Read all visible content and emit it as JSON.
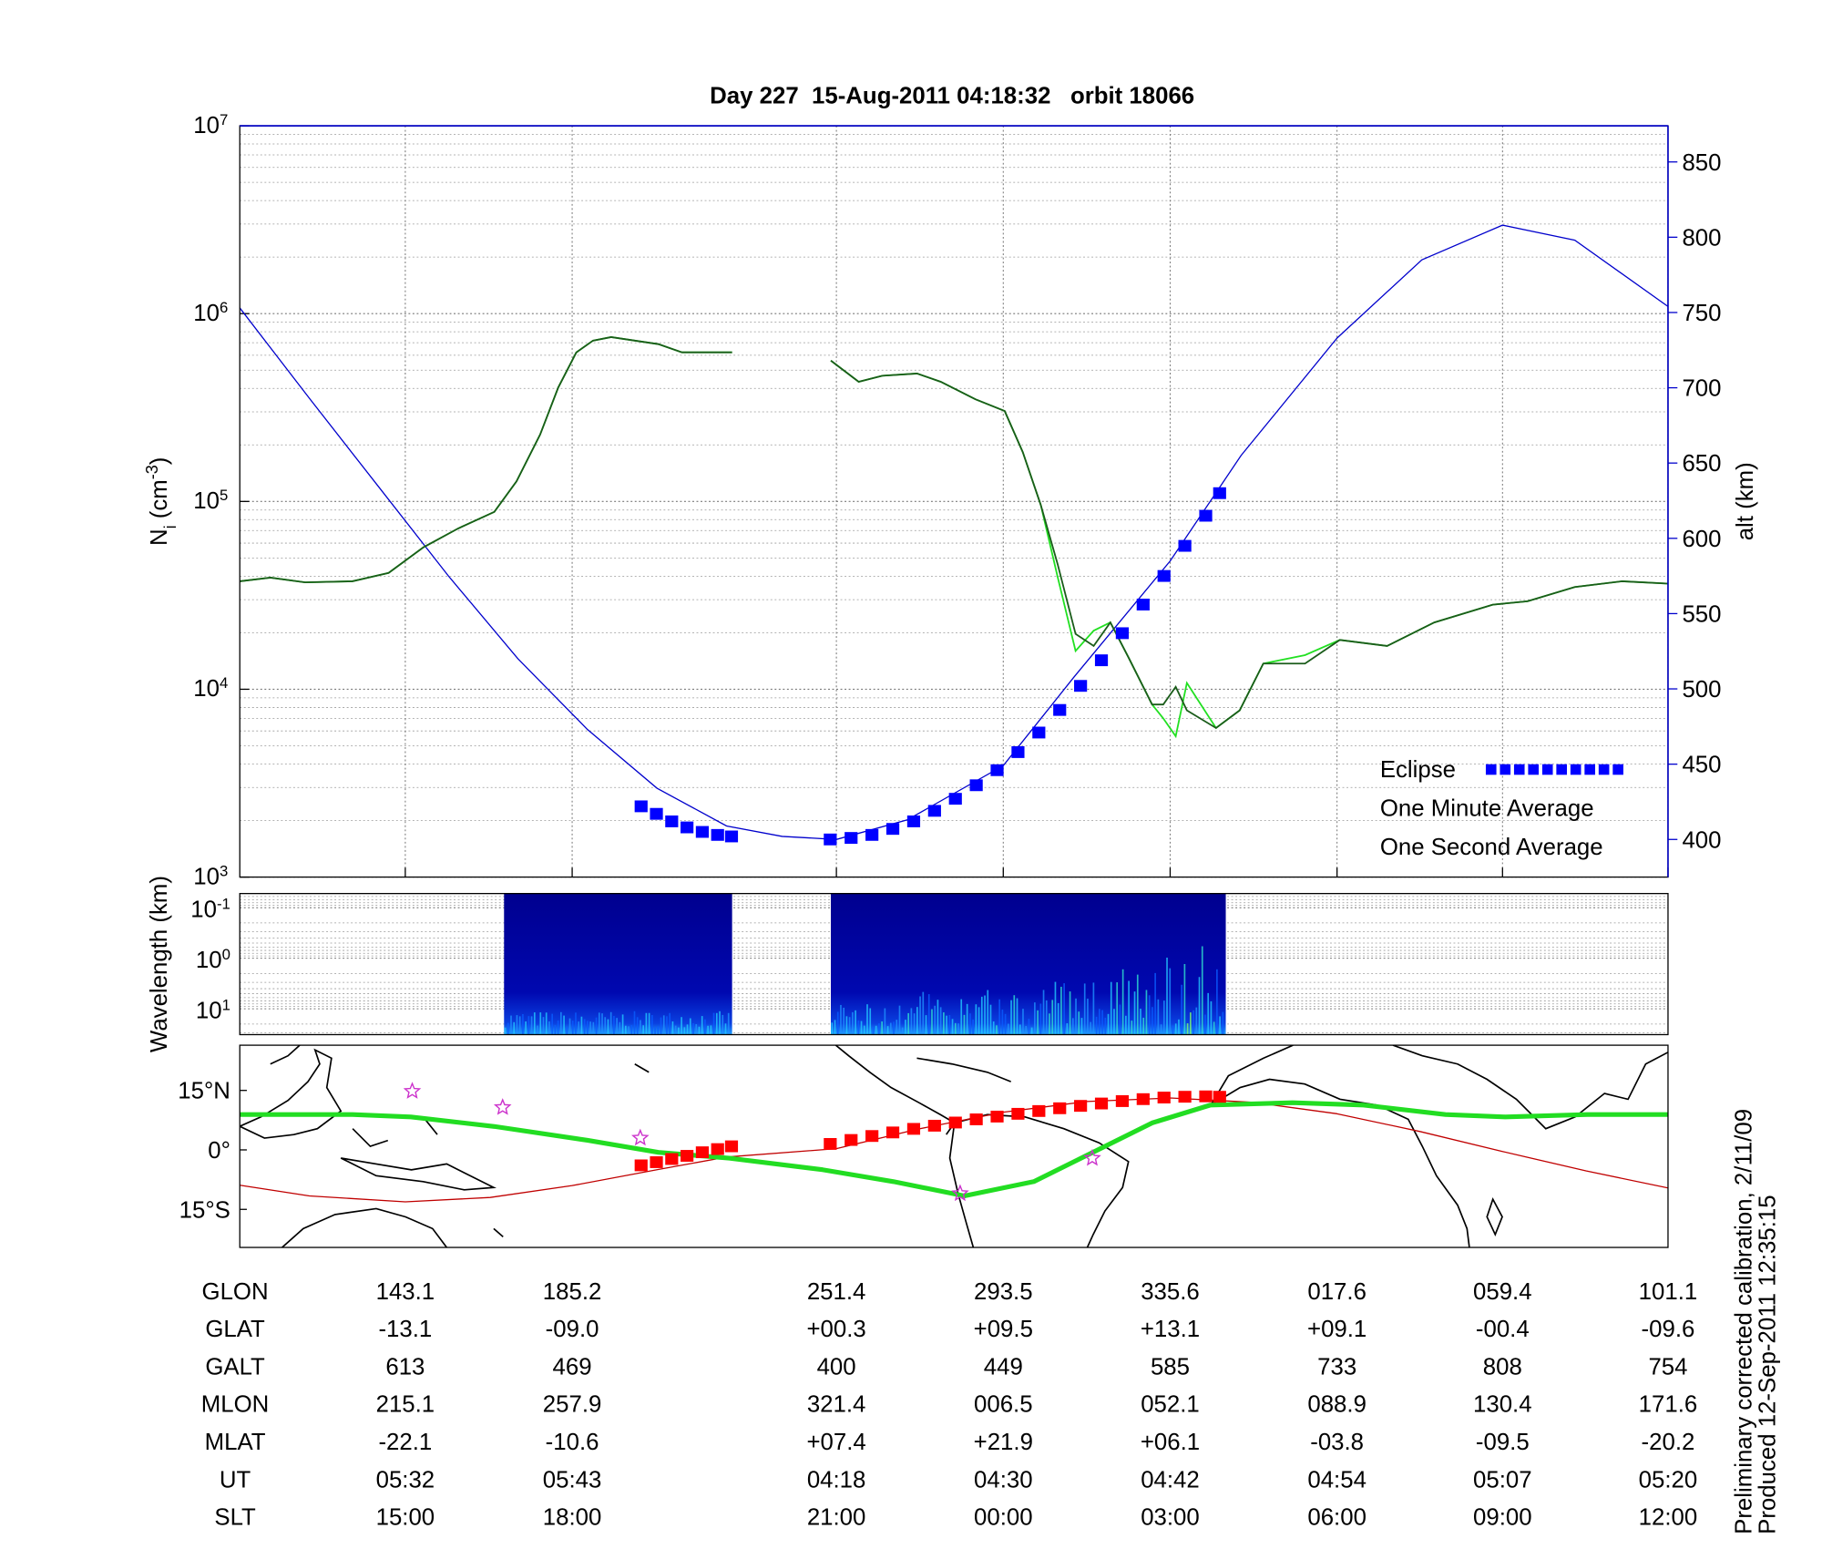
{
  "chart_data": [
    {
      "type": "line",
      "title": "Day 227  15-Aug-2011 04:18:32   orbit 18066",
      "ylabel": {
        "base": "N",
        "sub": "i",
        "unit": " (cm",
        "sup": "-3",
        "end": ")"
      },
      "y2label": "alt (km)",
      "log_y": true,
      "grid": true,
      "minor_grid": true,
      "legend": "lower right",
      "x": [
        0,
        2.2,
        4.7,
        8.1,
        10.7,
        13.2,
        15.7,
        18.3,
        19.9,
        21.6,
        22.9,
        24.2,
        25.4,
        26.7,
        28.4,
        30.1,
        31.8,
        33.5,
        35.4,
        39.0,
        42.5,
        44.5,
        46.2,
        48.7,
        50.4,
        52.9,
        55.0,
        56.3,
        57.6,
        58.8,
        60.1,
        61.4,
        62.6,
        63.9,
        65.6,
        66.4,
        67.3,
        68.1,
        70.2,
        71.9,
        73.6,
        76.6,
        79.1,
        82.5,
        85.9,
        90.1,
        92.6,
        96.0,
        99.4,
        102.7
      ],
      "xlim": [
        0,
        102.7
      ],
      "xticks": [
        11.9,
        23.9,
        42.9,
        54.9,
        66.9,
        78.9,
        90.8,
        102.7
      ],
      "ylim": [
        1000,
        10000000
      ],
      "yticks": [
        {
          "value": 1000,
          "label": "10",
          "sup": "3"
        },
        {
          "value": 10000,
          "label": "10",
          "sup": "4"
        },
        {
          "value": 100000,
          "label": "10",
          "sup": "5"
        },
        {
          "value": 1000000,
          "label": "10",
          "sup": "6"
        },
        {
          "value": 10000000,
          "label": "10",
          "sup": "7"
        }
      ],
      "y2lim": [
        375,
        874
      ],
      "y2ticks": [
        400,
        450,
        500,
        550,
        600,
        650,
        700,
        750,
        800,
        850
      ],
      "series": [
        {
          "name": "Eclipse",
          "color": "#0000ff",
          "axis": "y2",
          "marker": "square",
          "x": [
            28.9,
            30.0,
            31.1,
            32.2,
            33.3,
            34.4,
            35.4,
            42.5,
            44,
            45.5,
            47,
            48.5,
            50,
            51.5,
            53,
            54.5,
            56,
            57.5,
            59,
            60.5,
            62,
            63.5,
            65,
            66.5,
            68,
            69.5,
            70.5
          ],
          "values": [
            422,
            417,
            412,
            408,
            405,
            403,
            402,
            400,
            401,
            403,
            407,
            412,
            419,
            427,
            436,
            446,
            458,
            471,
            486,
            502,
            519,
            537,
            556,
            575,
            595,
            615,
            630
          ]
        },
        {
          "name": "One Minute Average",
          "color": "#1a5c1a",
          "values": [
            37600,
            39300,
            37100,
            37600,
            41600,
            57000,
            71800,
            87900,
            128000,
            227000,
            404000,
            622000,
            718000,
            750000,
            718000,
            688000,
            622000,
            622000,
            622000,
            null,
            562000,
            434000,
            467000,
            480000,
            434000,
            350000,
            303000,
            183000,
            95700,
            46700,
            19700,
            17000,
            22700,
            14800,
            8300,
            8300,
            10300,
            7720,
            6220,
            7720,
            13700,
            13700,
            18300,
            17000,
            22700,
            28200,
            29400,
            35000,
            37600,
            36500
          ]
        },
        {
          "name": "One Second Average",
          "color": "#22e022",
          "values": [
            37600,
            39300,
            37100,
            37600,
            41600,
            57000,
            71800,
            87900,
            128000,
            227000,
            404000,
            622000,
            718000,
            750000,
            718000,
            688000,
            622000,
            622000,
            622000,
            null,
            562000,
            434000,
            467000,
            480000,
            434000,
            350000,
            303000,
            183000,
            95700,
            40000,
            16000,
            20500,
            22700,
            14800,
            8300,
            7000,
            5620,
            10800,
            6220,
            7720,
            13700,
            15200,
            18300,
            17000,
            22700,
            28200,
            29400,
            35000,
            37600,
            36500
          ]
        },
        {
          "color": "#0000cc",
          "axis": "y2",
          "x": [
            0,
            5,
            10,
            15,
            20,
            25,
            30,
            35,
            39,
            42.9,
            48,
            54.9,
            60,
            66.9,
            72,
            78.9,
            85,
            90.8,
            96,
            102.7
          ],
          "values": [
            753,
            693,
            634,
            575,
            520,
            473,
            434,
            409,
            402,
            400,
            413,
            449,
            508,
            585,
            655,
            733,
            785,
            808,
            798,
            754
          ]
        }
      ]
    },
    {
      "type": "spectrogram",
      "ylabel": "Wavelength (km)",
      "log_y": true,
      "minor_grid": true,
      "xlim": [
        0,
        102.7
      ],
      "ylim": [
        32.4,
        0.0525
      ],
      "yticks": [
        {
          "value": 0.1,
          "label": "10",
          "sup": "-1"
        },
        {
          "value": 1,
          "label": "10",
          "sup": "0"
        },
        {
          "value": 10,
          "label": "10",
          "sup": "1"
        }
      ],
      "segments": [
        [
          19.0,
          35.4
        ],
        [
          42.5,
          70.9
        ]
      ]
    },
    {
      "type": "map",
      "xlim": [
        0,
        102.7
      ],
      "ylim": [
        -24.6,
        26.4
      ],
      "yticks": [
        {
          "value": 15,
          "label": "15°N"
        },
        {
          "value": 0,
          "label": "0°"
        },
        {
          "value": -15,
          "label": "15°S"
        }
      ],
      "series": [
        {
          "color": "#c00000",
          "width": 1,
          "x": [
            0,
            5,
            11.9,
            18,
            23.9,
            30,
            35,
            42.9,
            48.7,
            54.9,
            60.9,
            66.9,
            72.9,
            78.9,
            84.9,
            90.8,
            96.8,
            102.7
          ],
          "values": [
            -8.9,
            -11.6,
            -13.1,
            -12.0,
            -9.0,
            -5.0,
            -1.8,
            0.3,
            5.2,
            9.5,
            12.2,
            13.1,
            12.0,
            9.1,
            4.6,
            -0.4,
            -5.3,
            -9.6
          ]
        },
        {
          "color": "#22dd22",
          "width": 4,
          "x": [
            0,
            8.1,
            12.3,
            18.3,
            25.0,
            30.1,
            35.2,
            41.9,
            47.0,
            52.1,
            57.1,
            60.5,
            65.6,
            69.8,
            75.7,
            80.8,
            86.7,
            91.0,
            96.9,
            102.7
          ],
          "values": [
            8.9,
            8.9,
            8.3,
            5.9,
            2.4,
            -0.6,
            -2.1,
            -5.0,
            -8.0,
            -11.6,
            -8.0,
            -2.1,
            6.8,
            11.3,
            11.9,
            11.3,
            8.9,
            8.3,
            8.9,
            8.9
          ]
        },
        {
          "color": "#ff0000",
          "marker": "square",
          "x": [
            28.9,
            30.0,
            31.1,
            32.2,
            33.3,
            34.4,
            35.4,
            42.5,
            44,
            45.5,
            47,
            48.5,
            50,
            51.5,
            53,
            54.5,
            56,
            57.5,
            59,
            60.5,
            62,
            63.5,
            65,
            66.5,
            68,
            69.5,
            70.5
          ],
          "values": [
            -3.9,
            -3.1,
            -2.3,
            -1.5,
            -0.6,
            0.2,
            0.9,
            1.5,
            2.5,
            3.5,
            4.4,
            5.3,
            6.1,
            6.9,
            7.7,
            8.4,
            9.1,
            9.8,
            10.5,
            11.1,
            11.7,
            12.3,
            12.8,
            13.2,
            13.4,
            13.5,
            13.4
          ]
        },
        {
          "color": "#cc33cc",
          "marker": "star",
          "x": [
            12.4,
            18.9,
            28.8,
            51.8,
            61.3
          ],
          "values": [
            14.8,
            10.7,
            3.0,
            -11.0,
            -2.1
          ]
        }
      ]
    }
  ],
  "table": {
    "rows": [
      {
        "label": "GLON",
        "cells": [
          "143.1",
          "185.2",
          "251.4",
          "293.5",
          "335.6",
          "017.6",
          "059.4",
          "101.1"
        ]
      },
      {
        "label": "GLAT",
        "cells": [
          "-13.1",
          "-09.0",
          "+00.3",
          "+09.5",
          "+13.1",
          "+09.1",
          "-00.4",
          "-09.6"
        ]
      },
      {
        "label": "GALT",
        "cells": [
          "613",
          "469",
          "400",
          "449",
          "585",
          "733",
          "808",
          "754"
        ]
      },
      {
        "label": "MLON",
        "cells": [
          "215.1",
          "257.9",
          "321.4",
          "006.5",
          "052.1",
          "088.9",
          "130.4",
          "171.6"
        ]
      },
      {
        "label": "MLAT",
        "cells": [
          "-22.1",
          "-10.6",
          "+07.4",
          "+21.9",
          "+06.1",
          "-03.8",
          "-09.5",
          "-20.2"
        ]
      },
      {
        "label": "UT",
        "cells": [
          "05:32",
          "05:43",
          "04:18",
          "04:30",
          "04:42",
          "04:54",
          "05:07",
          "05:20"
        ]
      },
      {
        "label": "SLT",
        "cells": [
          "15:00",
          "18:00",
          "21:00",
          "00:00",
          "03:00",
          "06:00",
          "09:00",
          "12:00"
        ]
      }
    ]
  },
  "notes": [
    "Preliminary corrected calibration, 2/11/09",
    "Produced 12-Sep-2011 12:35:15"
  ]
}
